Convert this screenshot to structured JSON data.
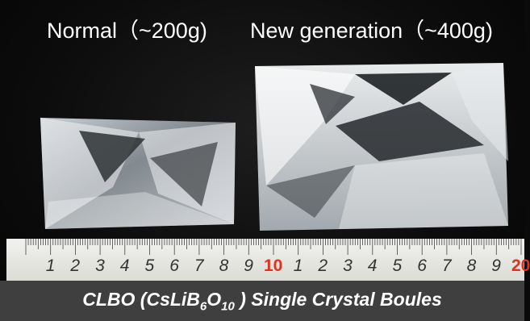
{
  "labels": {
    "normal": "Normal（~200g)",
    "new_generation": "New generation（~400g)"
  },
  "ruler": {
    "numbers": [
      "1",
      "2",
      "3",
      "4",
      "5",
      "6",
      "7",
      "8",
      "9",
      "10",
      "1",
      "2",
      "3",
      "4",
      "5",
      "6",
      "7",
      "8",
      "9",
      "20"
    ],
    "highlight_color": "#e0311e"
  },
  "caption": {
    "prefix": "CLBO (CsLiB",
    "sub1": "6",
    "mid": "O",
    "sub2": "10",
    "suffix": " ) Single Crystal Boules"
  }
}
